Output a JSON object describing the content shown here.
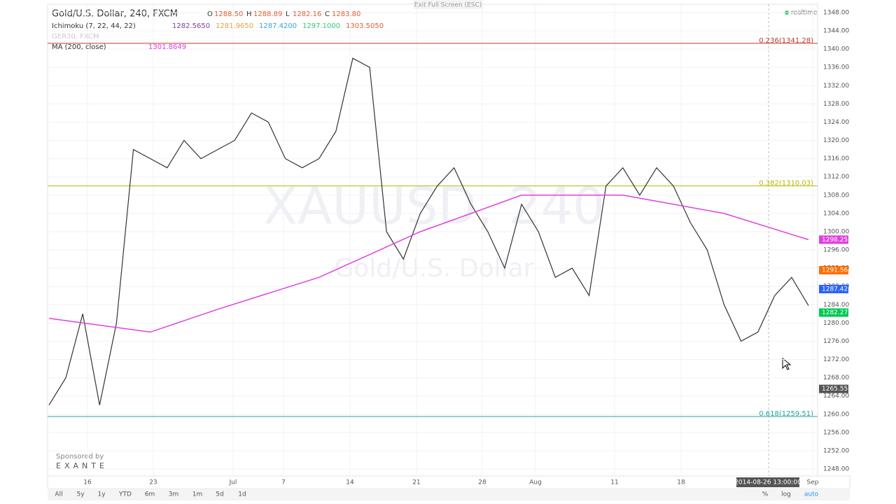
{
  "header": {
    "symbol": "Gold/U.S. Dollar, 240, FXCM",
    "ohlc": [
      {
        "key": "O",
        "value": "1288.50"
      },
      {
        "key": "H",
        "value": "1288.89"
      },
      {
        "key": "L",
        "value": "1282.16"
      },
      {
        "key": "C",
        "value": "1283.80"
      }
    ],
    "exit": "Exit Full Screen (ESC)",
    "status": "realtime"
  },
  "indicators": [
    {
      "name": "Ichimoku (7, 22, 44, 22)",
      "values": [
        {
          "text": "1282.5650",
          "color": "#7b3fa0"
        },
        {
          "text": "1281.9650",
          "color": "#e8a040"
        },
        {
          "text": "1287.4200",
          "color": "#3aa6d8"
        },
        {
          "text": "1297.1000",
          "color": "#2ecc71"
        },
        {
          "text": "1303.5050",
          "color": "#e06030"
        }
      ]
    },
    {
      "name": "GER30, FXCM",
      "values": []
    },
    {
      "name": "MA (200, close)",
      "values": [
        {
          "text": "1301.8649",
          "color": "#e040e0"
        }
      ]
    }
  ],
  "watermark": {
    "main": "XAUUSD, 240",
    "sub": "Gold/U.S. Dollar"
  },
  "sponsor": {
    "by": "Sponsored by",
    "name": "EXANTE"
  },
  "chart_data": {
    "type": "line",
    "series": [
      {
        "name": "Close",
        "color": "#333333",
        "values": [
          1262,
          1268,
          1282,
          1262,
          1280,
          1318,
          1316,
          1314,
          1320,
          1316,
          1318,
          1320,
          1326,
          1324,
          1316,
          1314,
          1316,
          1322,
          1338,
          1336,
          1300,
          1294,
          1304,
          1310,
          1314,
          1306,
          1300,
          1292,
          1306,
          1300,
          1290,
          1292,
          1286,
          1310,
          1314,
          1308,
          1314,
          1310,
          1302,
          1296,
          1284,
          1276,
          1278,
          1286,
          1290,
          1283.8
        ]
      },
      {
        "name": "MA (200, close)",
        "color": "#e040e0",
        "x": [
          0,
          6,
          10,
          16,
          22,
          28,
          34,
          40,
          45
        ],
        "values": [
          1281,
          1278,
          1283,
          1290,
          1300,
          1308,
          1308,
          1304,
          1298.25
        ]
      }
    ],
    "xtick_labels": [
      "16",
      "23",
      "Jul",
      "7",
      "14",
      "21",
      "28",
      "Aug",
      "11",
      "18",
      "Sep"
    ],
    "crosshair_time": "2014-08-26 13:00:00",
    "fib_levels": [
      {
        "label": "0.236(1341.28)",
        "value": 1341.28,
        "color": "#c0392b"
      },
      {
        "label": "0.382(1310.03)",
        "value": 1310.03,
        "color": "#b5b800"
      },
      {
        "label": "0.618(1259.51)",
        "value": 1259.51,
        "color": "#26a69a"
      }
    ],
    "price_tags": [
      {
        "value": 1298.25,
        "color": "#e040e0"
      },
      {
        "value": 1291.56,
        "color": "#ff6d00"
      },
      {
        "value": 1287.42,
        "color": "#2962ff"
      },
      {
        "value": 1282.27,
        "color": "#00c853"
      },
      {
        "value": 1265.55,
        "color": "#555555"
      }
    ],
    "ylim": [
      1248,
      1348
    ],
    "yticks": [
      {
        "value": 1248,
        "label": "1248.00"
      },
      {
        "value": 1252,
        "label": "1252.00"
      },
      {
        "value": 1256,
        "label": "1256.00"
      },
      {
        "value": 1260,
        "label": "1260.00"
      },
      {
        "value": 1264,
        "label": "1264.00"
      },
      {
        "value": 1268,
        "label": "1268.00"
      },
      {
        "value": 1272,
        "label": "1272.00"
      },
      {
        "value": 1276,
        "label": "1276.00"
      },
      {
        "value": 1280,
        "label": "1280.00"
      },
      {
        "value": 1284,
        "label": "1284.00"
      },
      {
        "value": 1288,
        "label": "1288.00"
      },
      {
        "value": 1292,
        "label": "1292.00"
      },
      {
        "value": 1296,
        "label": "1296.00"
      },
      {
        "value": 1300,
        "label": "1300.00"
      },
      {
        "value": 1304,
        "label": "1304.00"
      },
      {
        "value": 1308,
        "label": "1308.00"
      },
      {
        "value": 1312,
        "label": "1312.00"
      },
      {
        "value": 1316,
        "label": "1316.00"
      },
      {
        "value": 1320,
        "label": "1320.00"
      },
      {
        "value": 1324,
        "label": "1324.00"
      },
      {
        "value": 1328,
        "label": "1328.00"
      },
      {
        "value": 1332,
        "label": "1332.00"
      },
      {
        "value": 1336,
        "label": "1336.00"
      },
      {
        "value": 1340,
        "label": "1340.00"
      },
      {
        "value": 1344,
        "label": "1344.00"
      },
      {
        "value": 1348,
        "label": "1348.00"
      }
    ],
    "grid": true
  },
  "toolbar": {
    "ranges": [
      "All",
      "5y",
      "1y",
      "YTD",
      "6m",
      "3m",
      "1m",
      "5d",
      "1d"
    ],
    "options": [
      "%",
      "log",
      "auto"
    ]
  }
}
